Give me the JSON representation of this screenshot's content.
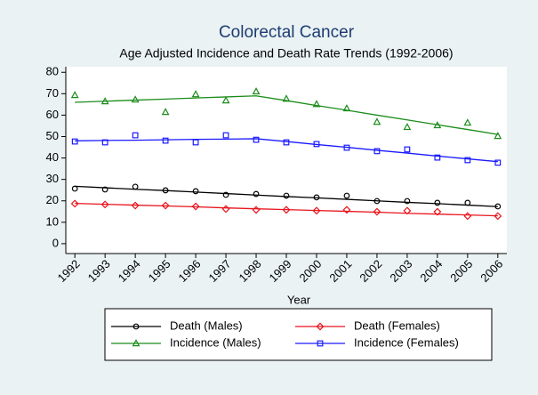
{
  "chart_data": {
    "type": "line",
    "title": "Colorectal Cancer",
    "subtitle": "Age Adjusted Incidence and Death Rate Trends (1992-2006)",
    "x_label": "Year",
    "x": [
      1992,
      1993,
      1994,
      1995,
      1996,
      1997,
      1998,
      1999,
      2000,
      2001,
      2002,
      2003,
      2004,
      2005,
      2006
    ],
    "xlim": [
      1991.7,
      2006.3
    ],
    "xticks": [
      1992,
      1993,
      1994,
      1995,
      1996,
      1997,
      1998,
      1999,
      2000,
      2001,
      2002,
      2003,
      2004,
      2005,
      2006
    ],
    "ylim": [
      -4.6,
      82.6
    ],
    "yticks": [
      0,
      10,
      20,
      30,
      40,
      50,
      60,
      70,
      80
    ],
    "series": [
      {
        "name": "Death (Males)",
        "color": "#000000",
        "marker": "circle",
        "values": [
          25.7,
          25.3,
          26.6,
          24.9,
          24.5,
          22.8,
          23.2,
          22.4,
          21.6,
          22.4,
          19.9,
          19.9,
          19.1,
          19.1,
          17.4
        ],
        "fit": [
          26.8,
          26.1,
          25.4,
          24.8,
          24.1,
          23.4,
          22.7,
          22.0,
          21.4,
          20.7,
          20.0,
          19.3,
          18.7,
          18.0,
          17.3
        ]
      },
      {
        "name": "Death (Females)",
        "color": "#e8141c",
        "marker": "diamond",
        "values": [
          18.7,
          18.3,
          17.8,
          17.8,
          17.4,
          16.2,
          15.8,
          15.8,
          15.4,
          15.8,
          14.9,
          15.4,
          14.9,
          12.9,
          12.9
        ],
        "fit": [
          18.8,
          18.4,
          18.0,
          17.6,
          17.2,
          16.7,
          16.3,
          15.9,
          15.5,
          15.1,
          14.7,
          14.2,
          13.8,
          13.4,
          13.0
        ]
      },
      {
        "name": "Incidence (Males)",
        "color": "#1a8c1a",
        "marker": "triangle",
        "values": [
          69.3,
          66.4,
          67.2,
          61.4,
          69.7,
          66.8,
          71.0,
          67.6,
          65.1,
          63.1,
          56.8,
          54.4,
          55.2,
          56.4,
          50.2
        ],
        "fit": [
          66.0,
          66.5,
          67.0,
          67.5,
          68.0,
          68.5,
          69.0,
          66.8,
          64.5,
          62.3,
          60.0,
          57.8,
          55.5,
          53.3,
          51.0
        ]
      },
      {
        "name": "Incidence (Females)",
        "color": "#1a1aff",
        "marker": "square",
        "values": [
          47.7,
          47.3,
          50.6,
          48.1,
          47.3,
          50.6,
          48.5,
          47.3,
          46.5,
          44.8,
          43.2,
          44.0,
          40.2,
          39.0,
          37.8
        ],
        "fit": [
          48.0,
          48.2,
          48.3,
          48.5,
          48.7,
          48.8,
          49.0,
          47.7,
          46.3,
          45.0,
          43.6,
          42.3,
          40.9,
          39.6,
          38.3
        ]
      }
    ]
  }
}
